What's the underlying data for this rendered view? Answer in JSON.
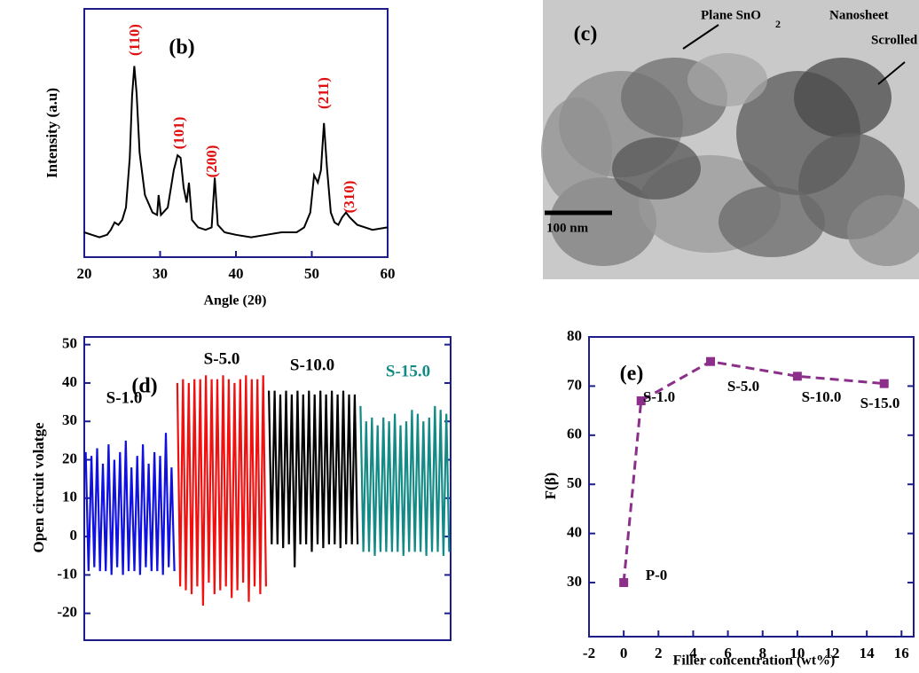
{
  "chart_data": [
    {
      "type": "line",
      "label": "(b)",
      "xlabel": "Angle (2θ)",
      "ylabel": "Intensity (a.u)",
      "color": "#000000",
      "x": [
        20,
        21,
        22,
        23,
        23.5,
        24,
        24.5,
        25,
        25.5,
        26,
        26.3,
        26.6,
        26.9,
        27.3,
        28,
        29,
        29.6,
        29.8,
        30.1,
        31,
        31.8,
        32.3,
        32.7,
        33.1,
        33.5,
        33.8,
        34.2,
        35,
        36,
        36.8,
        37.2,
        37.6,
        38.5,
        40,
        42,
        44,
        46,
        48,
        49,
        49.8,
        50.3,
        50.8,
        51.2,
        51.6,
        52,
        52.5,
        53,
        53.5,
        54,
        54.5,
        55,
        56,
        58,
        60
      ],
      "values": [
        10,
        9,
        8,
        9,
        11,
        14,
        13,
        15,
        20,
        40,
        65,
        77,
        66,
        42,
        25,
        18,
        17,
        25,
        17,
        20,
        35,
        41,
        40,
        28,
        22,
        30,
        15,
        12,
        11,
        12,
        32,
        13,
        10,
        9,
        8,
        9,
        10,
        10,
        12,
        18,
        33,
        30,
        35,
        54,
        36,
        18,
        14,
        13,
        16,
        18,
        16,
        13,
        11,
        12
      ],
      "xlim": [
        20,
        60
      ],
      "xticks": [
        20,
        30,
        40,
        50,
        60
      ],
      "ylim": [
        0,
        100
      ],
      "annotations": [
        "(110)",
        "(101)",
        "(200)",
        "(211)",
        "(310)"
      ]
    },
    {
      "type": "image",
      "label": "(c)",
      "annotations": [
        "Plane SnO",
        "2",
        "Nanosheet",
        "Scrolled"
      ],
      "scale_bar": "100 nm"
    },
    {
      "type": "line",
      "label": "(d)",
      "ylabel": "Open circuit volatge",
      "ylim": [
        -27,
        52
      ],
      "yticks": [
        -20,
        -10,
        0,
        10,
        20,
        30,
        40,
        50
      ],
      "series": [
        {
          "name": "S-1.0",
          "color": "#1010e0",
          "values": [
            22,
            -9,
            21,
            -8,
            23,
            -9,
            19,
            -9,
            24,
            -10,
            20,
            -8,
            22,
            -10,
            25,
            -9,
            18,
            -9,
            21,
            -10,
            24,
            -8,
            19,
            -9,
            22,
            -9,
            21,
            -10,
            27,
            -8,
            18,
            -9
          ]
        },
        {
          "name": "S-5.0",
          "color": "#f01010",
          "values": [
            40,
            -13,
            41,
            -14,
            40,
            -15,
            41,
            -13,
            41,
            -18,
            42,
            -12,
            41,
            -15,
            41,
            -14,
            42,
            -13,
            41,
            -16,
            40,
            -14,
            41,
            -12,
            42,
            -17,
            41,
            -13,
            41,
            -15,
            42,
            -13
          ]
        },
        {
          "name": "S-10.0",
          "color": "#000000",
          "values": [
            38,
            -2,
            38,
            -2,
            37,
            -3,
            38,
            -2,
            37,
            -8,
            38,
            -2,
            37,
            -2,
            38,
            -4,
            37,
            -2,
            38,
            -3,
            37,
            -2,
            38,
            -2,
            37,
            -3,
            38,
            -2,
            37,
            -2,
            37,
            -2
          ]
        },
        {
          "name": "S-15.0",
          "color": "#138a86",
          "values": [
            34,
            -4,
            30,
            -4,
            31,
            -5,
            29,
            -4,
            31,
            -4,
            30,
            -4,
            32,
            -4,
            29,
            -5,
            30,
            -4,
            33,
            -4,
            32,
            -4,
            30,
            -5,
            31,
            -4,
            34,
            -4,
            33,
            -5,
            32,
            -4
          ]
        }
      ]
    },
    {
      "type": "line",
      "label": "(e)",
      "xlabel": "Filler concentration (wt%)",
      "ylabel": "F(β)",
      "color": "#8b2f8b",
      "linestyle": "dashed",
      "marker": "square",
      "x": [
        0,
        1,
        5,
        10,
        15
      ],
      "values": [
        30,
        67,
        75,
        72,
        70.5
      ],
      "point_labels": [
        "P-0",
        "S-1.0",
        "S-5.0",
        "S-10.0",
        "S-15.0"
      ],
      "xlim": [
        -2,
        16.7
      ],
      "xticks": [
        -2,
        0,
        2,
        4,
        6,
        8,
        10,
        12,
        14,
        16
      ],
      "ylim": [
        19,
        80
      ],
      "yticks": [
        30,
        40,
        50,
        60,
        70,
        80
      ]
    }
  ]
}
